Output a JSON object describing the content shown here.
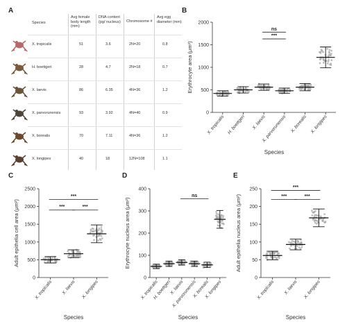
{
  "panels": {
    "A": "A",
    "B": "B",
    "C": "C",
    "D": "D",
    "E": "E"
  },
  "table": {
    "headers": [
      "Species",
      "Avg female body length (mm)",
      "DNA content (pg/ nucleus)",
      "Chromosome #",
      "Avg egg diameter (mm)"
    ],
    "rows": [
      {
        "species": "X. tropicalis",
        "length": "51",
        "dna": "3.6",
        "chrom": "2N=20",
        "egg": "0.8",
        "frog_color": "#b86a6a"
      },
      {
        "species": "H. boettgeri",
        "length": "28",
        "dna": "4.7",
        "chrom": "2N=18",
        "egg": "0.7",
        "frog_color": "#7a5a3a"
      },
      {
        "species": "X. laevis",
        "length": "86",
        "dna": "6.35",
        "chrom": "4N=36",
        "egg": "1.2",
        "frog_color": "#6a5236"
      },
      {
        "species": "X. parvorunensis",
        "length": "93",
        "dna": "3.92",
        "chrom": "4N=40",
        "egg": "0.9",
        "frog_color": "#4e4438"
      },
      {
        "species": "X. borealis",
        "length": "70",
        "dna": "7.11",
        "chrom": "4N=36",
        "egg": "1.2",
        "frog_color": "#6b4a2e"
      },
      {
        "species": "X. longipes",
        "length": "40",
        "dna": "18",
        "chrom": "12N=108",
        "egg": "1.1",
        "frog_color": "#5a4030"
      }
    ]
  },
  "chart_data": [
    {
      "id": "B",
      "type": "scatter",
      "ylabel": "Erythrocyte area (μm²)",
      "xlabel": "Species",
      "ylim": [
        0,
        2000
      ],
      "yticks": [
        0,
        500,
        1000,
        1500,
        2000
      ],
      "categories": [
        "X. tropicalis",
        "H. boettgeri",
        "X. laevis",
        "X. parvorunensis",
        "X. borealis",
        "X. longipes"
      ],
      "values": [
        420,
        500,
        560,
        480,
        560,
        1220
      ],
      "spread": [
        60,
        70,
        70,
        60,
        80,
        230
      ],
      "annotations": [
        {
          "from": 2,
          "to": 3,
          "level": 1780,
          "text": "ns"
        },
        {
          "from": 2,
          "to": 3,
          "level": 1630,
          "text": "***"
        }
      ]
    },
    {
      "id": "C",
      "type": "scatter",
      "ylabel": "Adult epithelia cell area (μm²)",
      "xlabel": "Species",
      "ylim": [
        0,
        2500
      ],
      "yticks": [
        0,
        500,
        1000,
        1500,
        2000,
        2500
      ],
      "categories": [
        "X. tropicalis",
        "X. laevis",
        "X. longipes"
      ],
      "values": [
        500,
        670,
        1230
      ],
      "spread": [
        90,
        110,
        250
      ],
      "annotations": [
        {
          "from": 0,
          "to": 2,
          "level": 2200,
          "text": "***"
        },
        {
          "from": 0,
          "to": 1,
          "level": 1900,
          "text": "***"
        },
        {
          "from": 1,
          "to": 2,
          "level": 1900,
          "text": "***"
        }
      ]
    },
    {
      "id": "D",
      "type": "scatter",
      "ylabel": "Erythrocyte nucleus area (μm²)",
      "xlabel": "Species",
      "ylim": [
        0,
        400
      ],
      "yticks": [
        0,
        100,
        200,
        300,
        400
      ],
      "categories": [
        "X. tropicalis",
        "H. boettgeri",
        "X. laevis",
        "X. parvorunensis",
        "X. borealis",
        "X. longipes"
      ],
      "values": [
        50,
        62,
        68,
        62,
        57,
        262
      ],
      "spread": [
        10,
        12,
        12,
        12,
        12,
        40
      ],
      "annotations": [
        {
          "from": 2,
          "to": 4,
          "level": 355,
          "text": "ns"
        }
      ]
    },
    {
      "id": "E",
      "type": "scatter",
      "ylabel": "Adult epithelia nucleus area (μm²)",
      "xlabel": "Species",
      "ylim": [
        0,
        250
      ],
      "yticks": [
        0,
        50,
        100,
        150,
        200,
        250
      ],
      "categories": [
        "X. tropicalis",
        "X. laevis",
        "X. longipes"
      ],
      "values": [
        62,
        93,
        168
      ],
      "spread": [
        12,
        15,
        25
      ],
      "annotations": [
        {
          "from": 0,
          "to": 2,
          "level": 245,
          "text": "***"
        },
        {
          "from": 0,
          "to": 1,
          "level": 220,
          "text": "***"
        },
        {
          "from": 1,
          "to": 2,
          "level": 220,
          "text": "***"
        }
      ]
    }
  ]
}
